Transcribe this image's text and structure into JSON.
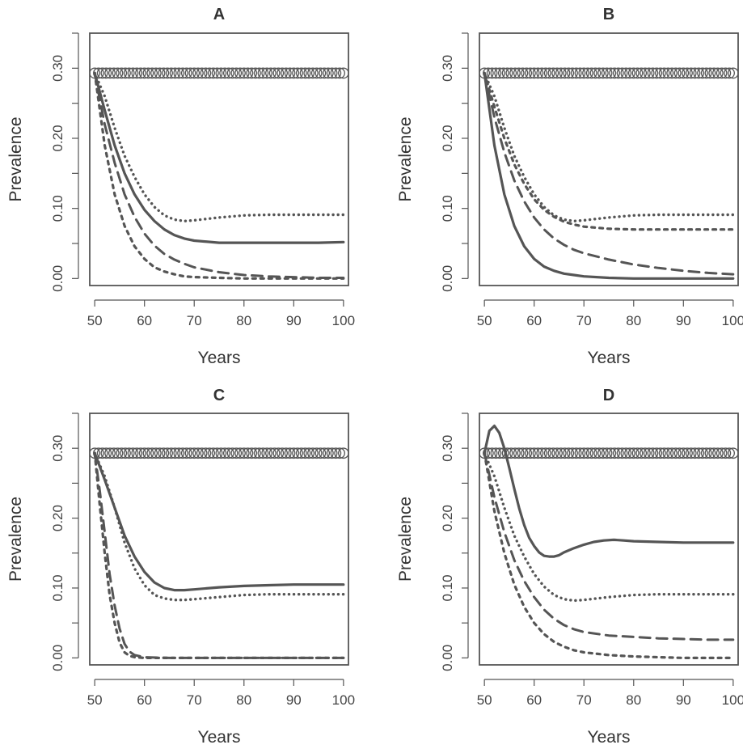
{
  "chart_data": [
    {
      "type": "line",
      "title": "A",
      "xlabel": "Years",
      "ylabel": "Prevalence",
      "xlim": [
        49,
        101
      ],
      "ylim": [
        -0.01,
        0.35
      ],
      "xticks": [
        "50",
        "60",
        "70",
        "80",
        "90",
        "100"
      ],
      "yticks": [
        "0.00",
        "0.10",
        "0.20",
        "0.30"
      ],
      "series": [
        {
          "style": "circles",
          "x": [
            50,
            100
          ],
          "y": [
            0.293,
            0.293
          ]
        },
        {
          "style": "dotted-crosses",
          "x": [
            50,
            52,
            54,
            56,
            58,
            60,
            62,
            64,
            66,
            68,
            70,
            75,
            80,
            85,
            90,
            95,
            100
          ],
          "y": [
            0.293,
            0.26,
            0.215,
            0.175,
            0.145,
            0.12,
            0.102,
            0.09,
            0.084,
            0.082,
            0.083,
            0.087,
            0.09,
            0.091,
            0.091,
            0.091,
            0.091
          ]
        },
        {
          "style": "solid",
          "x": [
            50,
            52,
            54,
            56,
            58,
            60,
            62,
            64,
            66,
            68,
            70,
            75,
            80,
            85,
            90,
            95,
            100
          ],
          "y": [
            0.293,
            0.24,
            0.19,
            0.15,
            0.12,
            0.098,
            0.082,
            0.07,
            0.062,
            0.057,
            0.054,
            0.051,
            0.051,
            0.051,
            0.051,
            0.051,
            0.052
          ]
        },
        {
          "style": "long-dash",
          "x": [
            50,
            52,
            54,
            56,
            58,
            60,
            62,
            64,
            66,
            68,
            70,
            75,
            80,
            85,
            90,
            95,
            100
          ],
          "y": [
            0.293,
            0.22,
            0.165,
            0.12,
            0.088,
            0.064,
            0.047,
            0.035,
            0.027,
            0.021,
            0.016,
            0.009,
            0.005,
            0.003,
            0.002,
            0.001,
            0.001
          ]
        },
        {
          "style": "short-dash",
          "x": [
            50,
            52,
            54,
            56,
            58,
            60,
            62,
            64,
            66,
            68,
            70,
            75,
            80,
            85,
            90,
            95,
            100
          ],
          "y": [
            0.293,
            0.19,
            0.12,
            0.075,
            0.046,
            0.028,
            0.016,
            0.01,
            0.006,
            0.003,
            0.002,
            0.001,
            0.0,
            0.0,
            0.0,
            0.0,
            0.0
          ]
        }
      ]
    },
    {
      "type": "line",
      "title": "B",
      "xlabel": "Years",
      "ylabel": "Prevalence",
      "xlim": [
        49,
        101
      ],
      "ylim": [
        -0.01,
        0.35
      ],
      "xticks": [
        "50",
        "60",
        "70",
        "80",
        "90",
        "100"
      ],
      "yticks": [
        "0.00",
        "0.10",
        "0.20",
        "0.30"
      ],
      "series": [
        {
          "style": "circles",
          "x": [
            50,
            100
          ],
          "y": [
            0.293,
            0.293
          ]
        },
        {
          "style": "dotted-crosses",
          "x": [
            50,
            52,
            54,
            56,
            58,
            60,
            62,
            64,
            66,
            68,
            70,
            75,
            80,
            85,
            90,
            95,
            100
          ],
          "y": [
            0.293,
            0.26,
            0.215,
            0.175,
            0.145,
            0.12,
            0.102,
            0.09,
            0.084,
            0.082,
            0.083,
            0.087,
            0.09,
            0.091,
            0.091,
            0.091,
            0.091
          ]
        },
        {
          "style": "short-dash",
          "x": [
            50,
            52,
            54,
            56,
            58,
            60,
            62,
            64,
            66,
            68,
            70,
            75,
            80,
            85,
            90,
            95,
            100
          ],
          "y": [
            0.293,
            0.245,
            0.2,
            0.163,
            0.135,
            0.113,
            0.098,
            0.088,
            0.081,
            0.077,
            0.074,
            0.071,
            0.07,
            0.07,
            0.07,
            0.07,
            0.07
          ]
        },
        {
          "style": "long-dash",
          "x": [
            50,
            52,
            54,
            56,
            58,
            60,
            62,
            64,
            66,
            68,
            70,
            75,
            80,
            85,
            90,
            95,
            100
          ],
          "y": [
            0.293,
            0.23,
            0.18,
            0.14,
            0.11,
            0.087,
            0.07,
            0.057,
            0.048,
            0.041,
            0.036,
            0.027,
            0.02,
            0.015,
            0.011,
            0.008,
            0.006
          ]
        },
        {
          "style": "solid",
          "x": [
            50,
            52,
            54,
            56,
            58,
            60,
            62,
            64,
            66,
            68,
            70,
            75,
            80,
            85,
            90,
            95,
            100
          ],
          "y": [
            0.293,
            0.19,
            0.12,
            0.075,
            0.046,
            0.028,
            0.017,
            0.011,
            0.007,
            0.005,
            0.003,
            0.001,
            0.0,
            0.0,
            0.0,
            0.0,
            0.0
          ]
        }
      ]
    },
    {
      "type": "line",
      "title": "C",
      "xlabel": "Years",
      "ylabel": "Prevalence",
      "xlim": [
        49,
        101
      ],
      "ylim": [
        -0.01,
        0.35
      ],
      "xticks": [
        "50",
        "60",
        "70",
        "80",
        "90",
        "100"
      ],
      "yticks": [
        "0.00",
        "0.10",
        "0.20",
        "0.30"
      ],
      "series": [
        {
          "style": "circles",
          "x": [
            50,
            100
          ],
          "y": [
            0.293,
            0.293
          ]
        },
        {
          "style": "solid",
          "x": [
            50,
            52,
            54,
            56,
            58,
            60,
            62,
            64,
            66,
            68,
            70,
            75,
            80,
            85,
            90,
            95,
            100
          ],
          "y": [
            0.293,
            0.255,
            0.215,
            0.175,
            0.145,
            0.123,
            0.108,
            0.1,
            0.097,
            0.097,
            0.098,
            0.101,
            0.103,
            0.104,
            0.105,
            0.105,
            0.105
          ]
        },
        {
          "style": "dotted-crosses",
          "x": [
            50,
            52,
            54,
            56,
            58,
            60,
            62,
            64,
            66,
            68,
            70,
            75,
            80,
            85,
            90,
            95,
            100
          ],
          "y": [
            0.293,
            0.26,
            0.215,
            0.165,
            0.128,
            0.104,
            0.09,
            0.085,
            0.083,
            0.083,
            0.084,
            0.087,
            0.09,
            0.091,
            0.091,
            0.091,
            0.091
          ]
        },
        {
          "style": "long-dash",
          "x": [
            50,
            51,
            52,
            53,
            54,
            55,
            56,
            57,
            58,
            60,
            65,
            70,
            80,
            90,
            100
          ],
          "y": [
            0.293,
            0.24,
            0.18,
            0.12,
            0.075,
            0.042,
            0.02,
            0.009,
            0.004,
            0.001,
            0.0,
            0.0,
            0.0,
            0.0,
            0.0
          ]
        },
        {
          "style": "short-dash",
          "x": [
            50,
            51,
            52,
            53,
            54,
            55,
            56,
            57,
            58,
            60,
            65,
            70,
            80,
            90,
            100
          ],
          "y": [
            0.293,
            0.22,
            0.15,
            0.09,
            0.05,
            0.022,
            0.008,
            0.003,
            0.001,
            0.0,
            0.0,
            0.0,
            0.0,
            0.0,
            0.0
          ]
        }
      ]
    },
    {
      "type": "line",
      "title": "D",
      "xlabel": "Years",
      "ylabel": "Prevalence",
      "xlim": [
        49,
        101
      ],
      "ylim": [
        -0.01,
        0.35
      ],
      "xticks": [
        "50",
        "60",
        "70",
        "80",
        "90",
        "100"
      ],
      "yticks": [
        "0.00",
        "0.10",
        "0.20",
        "0.30"
      ],
      "series": [
        {
          "style": "circles",
          "x": [
            50,
            100
          ],
          "y": [
            0.293,
            0.293
          ]
        },
        {
          "style": "solid",
          "x": [
            50,
            51,
            52,
            53,
            54,
            55,
            56,
            57,
            58,
            59,
            60,
            61,
            62,
            63,
            64,
            65,
            66,
            68,
            70,
            72,
            74,
            76,
            78,
            80,
            85,
            90,
            95,
            100
          ],
          "y": [
            0.293,
            0.325,
            0.332,
            0.322,
            0.3,
            0.272,
            0.242,
            0.214,
            0.19,
            0.172,
            0.16,
            0.151,
            0.146,
            0.145,
            0.145,
            0.147,
            0.151,
            0.157,
            0.162,
            0.166,
            0.168,
            0.169,
            0.168,
            0.167,
            0.166,
            0.165,
            0.165,
            0.165
          ]
        },
        {
          "style": "dotted-crosses",
          "x": [
            50,
            52,
            54,
            56,
            58,
            60,
            62,
            64,
            66,
            68,
            70,
            75,
            80,
            85,
            90,
            95,
            100
          ],
          "y": [
            0.293,
            0.26,
            0.215,
            0.175,
            0.145,
            0.12,
            0.102,
            0.09,
            0.084,
            0.082,
            0.083,
            0.087,
            0.09,
            0.091,
            0.091,
            0.091,
            0.091
          ]
        },
        {
          "style": "long-dash",
          "x": [
            50,
            52,
            54,
            56,
            58,
            60,
            62,
            64,
            66,
            68,
            70,
            75,
            80,
            85,
            90,
            95,
            100
          ],
          "y": [
            0.293,
            0.23,
            0.18,
            0.14,
            0.11,
            0.087,
            0.069,
            0.056,
            0.047,
            0.041,
            0.037,
            0.032,
            0.03,
            0.028,
            0.027,
            0.026,
            0.026
          ]
        },
        {
          "style": "short-dash",
          "x": [
            50,
            52,
            54,
            56,
            58,
            60,
            62,
            64,
            66,
            68,
            70,
            75,
            80,
            85,
            90,
            95,
            100
          ],
          "y": [
            0.293,
            0.21,
            0.15,
            0.105,
            0.073,
            0.05,
            0.034,
            0.023,
            0.016,
            0.011,
            0.008,
            0.004,
            0.002,
            0.001,
            0.0,
            0.0,
            0.0
          ]
        }
      ]
    }
  ]
}
